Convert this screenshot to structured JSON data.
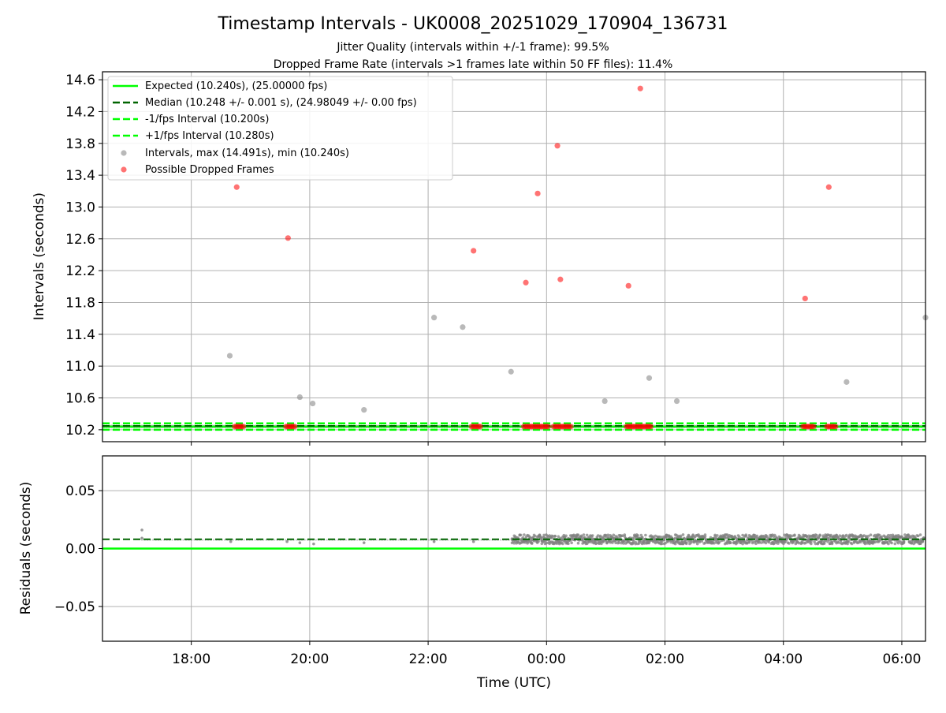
{
  "title": "Timestamp Intervals - UK0008_20251029_170904_136731",
  "subtitle_lines": [
    "Jitter Quality (intervals within +/-1 frame): 99.5%",
    "Dropped Frame Rate (intervals >1 frames late within 50 FF files): 11.4%"
  ],
  "colors": {
    "expected": "#00ff00",
    "median": "#006400",
    "fps_interval": "#00ff00",
    "intervals": "#808080",
    "dropped": "#ff0000",
    "grid": "#b0b0b0"
  },
  "chart_data": [
    {
      "type": "scatter",
      "name": "intervals",
      "ylabel": "Intervals (seconds)",
      "ylim": [
        10.05,
        14.7
      ],
      "y_ticks": [
        "10.2",
        "10.6",
        "11.0",
        "11.4",
        "11.8",
        "12.2",
        "12.6",
        "13.0",
        "13.4",
        "13.8",
        "14.2",
        "14.6"
      ],
      "xlim_hours": [
        16.5,
        30.4
      ],
      "grid": true,
      "legend_position": "top-left",
      "reference_lines": {
        "expected": 10.24,
        "median": 10.248,
        "minus_fps": 10.2,
        "plus_fps": 10.28
      },
      "legend": [
        "Expected (10.240s), (25.00000 fps)",
        "Median (10.248 +/- 0.001 s), (24.98049 +/- 0.00 fps)",
        "-1/fps Interval (10.200s)",
        "+1/fps Interval (10.280s)",
        "Intervals, max (14.491s), min (10.240s)",
        "Possible Dropped Frames"
      ],
      "intervals_points": [
        {
          "x": "18:39",
          "y": 11.13
        },
        {
          "x": "19:50",
          "y": 10.61
        },
        {
          "x": "20:03",
          "y": 10.53
        },
        {
          "x": "20:55",
          "y": 10.45
        },
        {
          "x": "22:06",
          "y": 11.61
        },
        {
          "x": "22:35",
          "y": 11.49
        },
        {
          "x": "23:24",
          "y": 10.93
        },
        {
          "x": "00:59",
          "y": 10.56
        },
        {
          "x": "01:44",
          "y": 10.85
        },
        {
          "x": "02:12",
          "y": 10.56
        },
        {
          "x": "05:04",
          "y": 10.8
        },
        {
          "x": "06:24",
          "y": 11.61
        }
      ],
      "dropped_points": [
        {
          "x": "18:46",
          "y": 13.25
        },
        {
          "x": "19:38",
          "y": 12.61
        },
        {
          "x": "22:46",
          "y": 12.45
        },
        {
          "x": "23:39",
          "y": 12.05
        },
        {
          "x": "23:51",
          "y": 13.17
        },
        {
          "x": "00:11",
          "y": 13.77
        },
        {
          "x": "00:14",
          "y": 12.09
        },
        {
          "x": "01:23",
          "y": 12.01
        },
        {
          "x": "01:35",
          "y": 14.49
        },
        {
          "x": "04:22",
          "y": 11.85
        },
        {
          "x": "04:46",
          "y": 13.25
        }
      ],
      "dropped_baseline_clusters": [
        {
          "start": "18:44",
          "end": "18:53",
          "y": 10.24
        },
        {
          "start": "19:36",
          "end": "19:46",
          "y": 10.24
        },
        {
          "start": "22:44",
          "end": "22:54",
          "y": 10.24
        },
        {
          "start": "23:37",
          "end": "00:02",
          "y": 10.24
        },
        {
          "start": "00:07",
          "end": "00:26",
          "y": 10.24
        },
        {
          "start": "01:21",
          "end": "01:46",
          "y": 10.24
        },
        {
          "start": "04:20",
          "end": "04:32",
          "y": 10.24
        },
        {
          "start": "04:44",
          "end": "04:54",
          "y": 10.24
        }
      ]
    },
    {
      "type": "scatter",
      "name": "residuals",
      "ylabel": "Residuals (seconds)",
      "xlabel": "Time (UTC)",
      "ylim": [
        -0.08,
        0.08
      ],
      "y_ticks": [
        "0.05",
        "0.00",
        "−0.05"
      ],
      "x_ticks": [
        "18:00",
        "20:00",
        "22:00",
        "00:00",
        "02:00",
        "04:00",
        "06:00"
      ],
      "xlim_hours": [
        16.5,
        30.4
      ],
      "grid": true,
      "expected_residual": 0.0,
      "median_residual": 0.008,
      "sparse_points": [
        {
          "x": "17:10",
          "y": 0.016
        },
        {
          "x": "17:10",
          "y": 0.009
        },
        {
          "x": "18:40",
          "y": 0.006
        },
        {
          "x": "19:37",
          "y": 0.006
        },
        {
          "x": "19:50",
          "y": 0.005
        },
        {
          "x": "20:04",
          "y": 0.004
        },
        {
          "x": "20:55",
          "y": 0.005
        },
        {
          "x": "22:06",
          "y": 0.006
        },
        {
          "x": "22:46",
          "y": 0.006
        }
      ],
      "dense_band": {
        "start": "23:25",
        "end": "06:30",
        "y_min": 0.004,
        "y_max": 0.012,
        "center": 0.008
      }
    }
  ]
}
